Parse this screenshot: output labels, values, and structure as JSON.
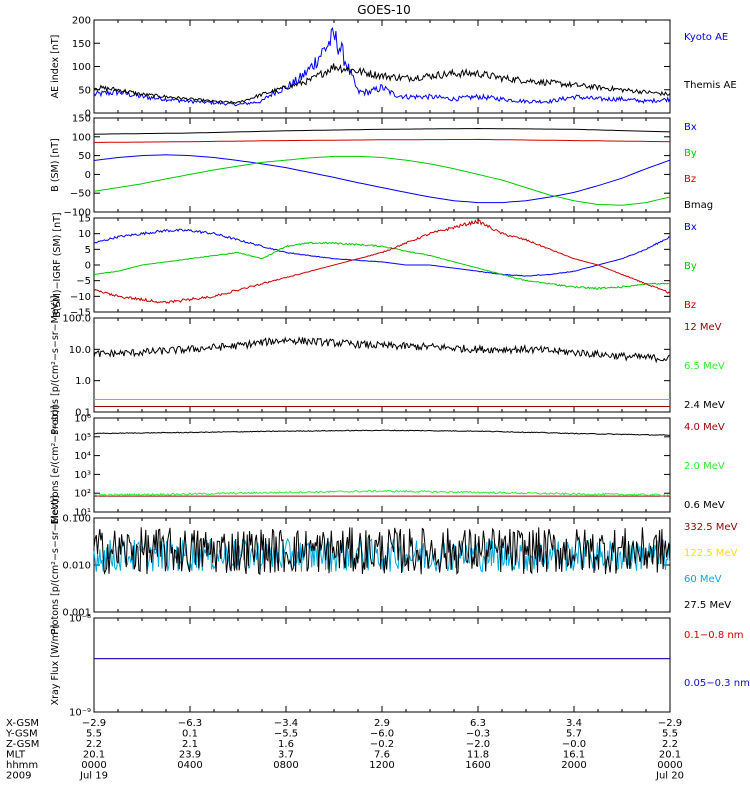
{
  "title": "GOES-10",
  "colors": {
    "black": "#000000",
    "blue": "#0000ff",
    "darkblue": "#1010c0",
    "red": "#cc0000",
    "darkred": "#990000",
    "green": "#00cc00",
    "brightgreen": "#33ee33",
    "yellow": "#ffdd00",
    "cyan": "#00aadd",
    "purple": "#7a2070"
  },
  "chart_data": [
    {
      "type": "line",
      "ylabel": "AE index [nT]",
      "ylim": [
        0,
        200
      ],
      "yscale": "linear",
      "yticks": [
        0,
        50,
        100,
        150,
        200
      ],
      "yticklabels": [
        "0",
        "50",
        "100",
        "150",
        "200"
      ],
      "series": [
        {
          "name": "Kyoto AE",
          "color": "#0000ff",
          "x": [
            0,
            1,
            2,
            3,
            4,
            5,
            6,
            7,
            7.5,
            8,
            8.5,
            9,
            9.5,
            10,
            10.3,
            10.6,
            11,
            11.5,
            12,
            12.5,
            13,
            14,
            15,
            16,
            17,
            18,
            19,
            20,
            21,
            22,
            23,
            24
          ],
          "y": [
            40,
            45,
            35,
            30,
            25,
            22,
            18,
            25,
            45,
            55,
            70,
            95,
            130,
            165,
            135,
            95,
            45,
            45,
            55,
            40,
            35,
            35,
            30,
            35,
            30,
            25,
            25,
            35,
            30,
            30,
            25,
            30
          ]
        },
        {
          "name": "Themis AE",
          "color": "#000000",
          "x": [
            0,
            1,
            2,
            3,
            4,
            5,
            6,
            7,
            8,
            9,
            10,
            11,
            12,
            13,
            14,
            15,
            16,
            17,
            18,
            19,
            20,
            21,
            22,
            23,
            24
          ],
          "y": [
            55,
            50,
            40,
            35,
            30,
            25,
            22,
            40,
            55,
            70,
            100,
            90,
            80,
            75,
            80,
            85,
            85,
            75,
            70,
            65,
            60,
            55,
            50,
            45,
            40
          ]
        }
      ]
    },
    {
      "type": "line",
      "ylabel": "B (SM) [nT]",
      "ylim": [
        -100,
        150
      ],
      "yscale": "linear",
      "yticks": [
        -100,
        -50,
        0,
        50,
        100,
        150
      ],
      "yticklabels": [
        "−100",
        "−50",
        "0",
        "50",
        "100",
        "150"
      ],
      "series": [
        {
          "name": "Bx",
          "color": "#0000ff",
          "x": [
            0,
            1,
            2,
            3,
            4,
            5,
            6,
            7,
            8,
            9,
            10,
            11,
            12,
            13,
            14,
            15,
            16,
            17,
            18,
            19,
            20,
            21,
            22,
            23,
            24
          ],
          "y": [
            37,
            45,
            50,
            52,
            50,
            45,
            37,
            28,
            18,
            5,
            -8,
            -22,
            -35,
            -48,
            -60,
            -70,
            -75,
            -75,
            -70,
            -60,
            -48,
            -30,
            -10,
            15,
            38
          ]
        },
        {
          "name": "By",
          "color": "#00cc00",
          "x": [
            0,
            1,
            2,
            3,
            4,
            5,
            6,
            7,
            8,
            9,
            10,
            11,
            12,
            13,
            14,
            15,
            16,
            17,
            18,
            19,
            20,
            21,
            22,
            23,
            24
          ],
          "y": [
            -45,
            -35,
            -25,
            -12,
            0,
            12,
            22,
            32,
            38,
            44,
            48,
            48,
            45,
            38,
            28,
            15,
            0,
            -15,
            -35,
            -55,
            -70,
            -80,
            -82,
            -75,
            -60
          ]
        },
        {
          "name": "Bz",
          "color": "#cc0000",
          "x": [
            0,
            4,
            8,
            12,
            16,
            20,
            24
          ],
          "y": [
            85,
            87,
            90,
            92,
            93,
            90,
            87
          ]
        },
        {
          "name": "Bmag",
          "color": "#000000",
          "x": [
            0,
            4,
            8,
            12,
            16,
            20,
            24
          ],
          "y": [
            107,
            110,
            116,
            120,
            122,
            120,
            113
          ]
        }
      ]
    },
    {
      "type": "line",
      "ylabel": "B(SM)−IGRF (SM) [nT]",
      "ylim": [
        -15,
        15
      ],
      "yscale": "linear",
      "yticks": [
        -15,
        -10,
        -5,
        0,
        5,
        10,
        15
      ],
      "yticklabels": [
        "−15",
        "−10",
        "−5",
        "0",
        "5",
        "10",
        "15"
      ],
      "series": [
        {
          "name": "Bx",
          "color": "#0000ff",
          "x": [
            0,
            1,
            2,
            3,
            4,
            5,
            6,
            7,
            8,
            9,
            10,
            11,
            12,
            13,
            14,
            15,
            16,
            17,
            18,
            19,
            20,
            21,
            22,
            23,
            24
          ],
          "y": [
            7,
            9,
            10,
            11,
            11,
            10,
            8,
            6,
            4,
            3,
            2,
            1.5,
            1,
            0,
            0,
            -1,
            -2,
            -3,
            -3.5,
            -3,
            -2,
            0,
            2,
            5,
            9
          ]
        },
        {
          "name": "By",
          "color": "#00cc00",
          "x": [
            0,
            1,
            2,
            3,
            4,
            5,
            6,
            7,
            8,
            9,
            10,
            11,
            12,
            13,
            14,
            15,
            16,
            17,
            18,
            19,
            20,
            21,
            22,
            23,
            24
          ],
          "y": [
            -3,
            -2,
            0,
            1,
            2,
            3,
            4,
            2,
            6,
            7,
            7,
            6.5,
            6,
            4.5,
            3,
            1,
            -1,
            -3,
            -5,
            -6,
            -7,
            -7.5,
            -7,
            -6,
            -6
          ]
        },
        {
          "name": "Bz",
          "color": "#cc0000",
          "x": [
            0,
            1,
            2,
            3,
            4,
            5,
            6,
            7,
            8,
            9,
            10,
            11,
            12,
            13,
            14,
            15,
            16,
            17,
            18,
            19,
            20,
            21,
            22,
            23,
            24
          ],
          "y": [
            -8,
            -10,
            -11,
            -12,
            -11,
            -10,
            -8,
            -6,
            -4,
            -2,
            0,
            2,
            4,
            7,
            10,
            12,
            14,
            10,
            8,
            5,
            2,
            0,
            -3,
            -6,
            -9
          ]
        }
      ]
    },
    {
      "type": "line",
      "ylabel": "Protons [p/(cm²−s−sr−MeV)]",
      "ylim": [
        0.1,
        100
      ],
      "yscale": "log",
      "yticks": [
        0.1,
        1,
        10,
        100
      ],
      "yticklabels": [
        "0.1",
        "1.0",
        "10.0",
        "100.0"
      ],
      "series": [
        {
          "name": "12 MeV",
          "color": "#990000",
          "x": [
            0,
            24
          ],
          "y": [
            0.15,
            0.15
          ]
        },
        {
          "name": "6.5 MeV",
          "color": "#33ee33",
          "x": [
            0,
            24
          ],
          "y": [
            0.25,
            0.25
          ]
        },
        {
          "name": "2.4 MeV",
          "color": "#000000",
          "x": [
            0,
            2,
            4,
            6,
            8,
            10,
            12,
            14,
            16,
            18,
            20,
            22,
            24
          ],
          "y": [
            7,
            8,
            10,
            13,
            20,
            16,
            13,
            12,
            10,
            10,
            8,
            6,
            5
          ]
        }
      ]
    },
    {
      "type": "line",
      "ylabel": "Electrons [e/(cm²−s−sr)]",
      "ylim": [
        10,
        1000000
      ],
      "yscale": "log",
      "yticks": [
        10,
        100,
        1000,
        10000,
        100000,
        1000000
      ],
      "yticklabels": [
        "10¹",
        "10²",
        "10³",
        "10⁴",
        "10⁵",
        "10⁶"
      ],
      "series": [
        {
          "name": "4.0 MeV",
          "color": "#990000",
          "x": [
            0,
            24
          ],
          "y": [
            70,
            70
          ]
        },
        {
          "name": "2.0 MeV",
          "color": "#33ee33",
          "x": [
            0,
            4,
            8,
            12,
            16,
            20,
            24
          ],
          "y": [
            80,
            90,
            110,
            130,
            110,
            90,
            80
          ]
        },
        {
          "name": "0.6 MeV",
          "color": "#000000",
          "x": [
            0,
            4,
            8,
            12,
            16,
            20,
            24
          ],
          "y": [
            150000,
            170000,
            200000,
            220000,
            200000,
            150000,
            120000
          ]
        }
      ]
    },
    {
      "type": "line",
      "ylabel": "Protons [p/(cm²−s−sr−MeV)]",
      "ylim": [
        0.001,
        0.1
      ],
      "yscale": "log",
      "yticks": [
        0.001,
        0.01,
        0.1
      ],
      "yticklabels": [
        "0.001",
        "0.010",
        "0.100"
      ],
      "series": [
        {
          "name": "332.5 MeV",
          "color": "#990000",
          "x": [],
          "y": []
        },
        {
          "name": "122.5 MeV",
          "color": "#ffdd00",
          "x": [],
          "y": []
        },
        {
          "name": "60 MeV",
          "color": "#00aadd",
          "x": [
            0,
            24
          ],
          "y": [
            0.016,
            0.016
          ]
        },
        {
          "name": "27.5 MeV",
          "color": "#000000",
          "x": [
            0,
            24
          ],
          "y": [
            0.02,
            0.02
          ]
        }
      ]
    },
    {
      "type": "line",
      "ylabel": "Xray Flux [W/m²]",
      "ylim": [
        1e-09,
        1e-08
      ],
      "yscale": "log",
      "yticks": [
        1e-09,
        1e-08
      ],
      "yticklabels": [
        "10⁻⁹",
        "10⁻⁸"
      ],
      "series": [
        {
          "name": "0.1−0.8 nm",
          "color": "#cc0000",
          "x": [
            0,
            24
          ],
          "y": [
            3.7e-09,
            3.7e-09
          ]
        },
        {
          "name": "0.05−0.3 nm",
          "color": "#1010c0",
          "x": [
            0,
            24
          ],
          "y": [
            3.7e-09,
            3.7e-09
          ]
        }
      ]
    }
  ],
  "xaxis": {
    "xlim": [
      0,
      24
    ],
    "tick_hours": [
      0,
      4,
      8,
      12,
      16,
      20,
      24
    ],
    "rows": [
      {
        "label": "X-GSM",
        "values": [
          "−2.9",
          "−6.3",
          "−3.4",
          "2.9",
          "6.3",
          "3.4",
          "−2.9"
        ]
      },
      {
        "label": "Y-GSM",
        "values": [
          "5.5",
          "0.1",
          "−5.5",
          "−6.0",
          "−0.3",
          "5.7",
          "5.5"
        ]
      },
      {
        "label": "Z-GSM",
        "values": [
          "2.2",
          "2.1",
          "1.6",
          "−0.2",
          "−2.0",
          "−0.0",
          "2.2"
        ]
      },
      {
        "label": "MLT",
        "values": [
          "20.1",
          "23.9",
          "3.7",
          "7.6",
          "11.8",
          "16.1",
          "20.1"
        ]
      },
      {
        "label": "hhmm",
        "values": [
          "0000",
          "0400",
          "0800",
          "1200",
          "1600",
          "2000",
          "0000"
        ]
      },
      {
        "label": "2009",
        "values": [
          "Jul 19",
          "",
          "",
          "",
          "",
          "",
          "Jul 20"
        ]
      }
    ]
  }
}
